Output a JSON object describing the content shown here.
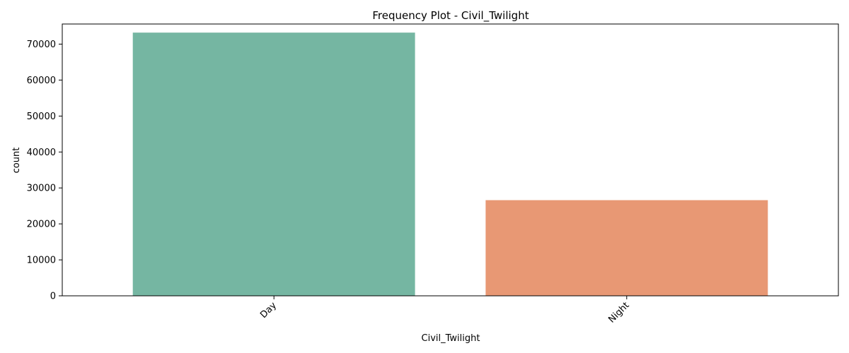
{
  "chart_data": {
    "type": "bar",
    "title": "Frequency Plot - Civil_Twilight",
    "xlabel": "Civil_Twilight",
    "ylabel": "count",
    "categories": [
      "Day",
      "Night"
    ],
    "values": [
      73200,
      26600
    ],
    "colors": [
      "#75b6a2",
      "#e89874"
    ],
    "ylim": [
      0,
      75600
    ],
    "yticks": [
      0,
      10000,
      20000,
      30000,
      40000,
      50000,
      60000,
      70000
    ],
    "grid": false,
    "legend": "none"
  }
}
